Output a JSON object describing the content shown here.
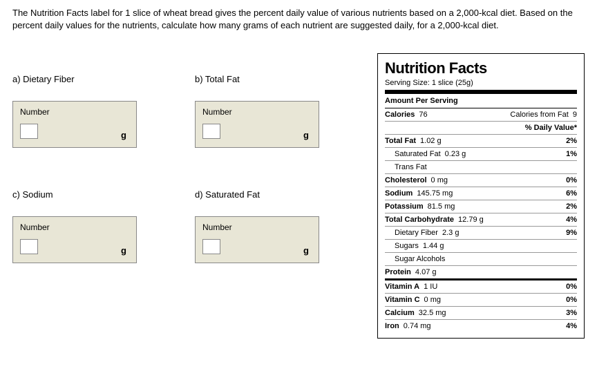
{
  "question": "The Nutrition Facts label for 1 slice of wheat bread gives the percent daily value of various nutrients based on a 2,000-kcal diet. Based on the percent daily values for the nutrients, calculate how many grams of each nutrient are suggested daily, for a 2,000-kcal diet.",
  "parts": {
    "a": {
      "label": "a) Dietary Fiber",
      "box_label": "Number",
      "unit": "g"
    },
    "b": {
      "label": "b) Total Fat",
      "box_label": "Number",
      "unit": "g"
    },
    "c": {
      "label": "c) Sodium",
      "box_label": "Number",
      "unit": "g"
    },
    "d": {
      "label": "d) Saturated Fat",
      "box_label": "Number",
      "unit": "g"
    }
  },
  "nf": {
    "title": "Nutrition Facts",
    "serving": "Serving Size: 1 slice (25g)",
    "amount_per": "Amount Per Serving",
    "calories_name": "Calories",
    "calories_val": "76",
    "calories_fat_label": "Calories from Fat",
    "calories_fat_val": "9",
    "dv_header": "% Daily Value*",
    "rows": [
      {
        "name": "Total Fat",
        "val": "1.02 g",
        "pct": "2%",
        "bold": true,
        "indent": false
      },
      {
        "name": "Saturated Fat",
        "val": "0.23 g",
        "pct": "1%",
        "bold": false,
        "indent": true
      },
      {
        "name": "Trans Fat",
        "val": "",
        "pct": "",
        "bold": false,
        "indent": true
      },
      {
        "name": "Cholesterol",
        "val": "0 mg",
        "pct": "0%",
        "bold": true,
        "indent": false
      },
      {
        "name": "Sodium",
        "val": "145.75 mg",
        "pct": "6%",
        "bold": true,
        "indent": false
      },
      {
        "name": "Potassium",
        "val": "81.5 mg",
        "pct": "2%",
        "bold": true,
        "indent": false
      },
      {
        "name": "Total Carbohydrate",
        "val": "12.79 g",
        "pct": "4%",
        "bold": true,
        "indent": false
      },
      {
        "name": "Dietary Fiber",
        "val": "2.3 g",
        "pct": "9%",
        "bold": false,
        "indent": true
      },
      {
        "name": "Sugars",
        "val": "1.44 g",
        "pct": "",
        "bold": false,
        "indent": true
      },
      {
        "name": "Sugar Alcohols",
        "val": "",
        "pct": "",
        "bold": false,
        "indent": true
      },
      {
        "name": "Protein",
        "val": "4.07 g",
        "pct": "",
        "bold": true,
        "indent": false,
        "thick": true
      },
      {
        "name": "Vitamin A",
        "val": "1 IU",
        "pct": "0%",
        "bold": true,
        "indent": false
      },
      {
        "name": "Vitamin C",
        "val": "0 mg",
        "pct": "0%",
        "bold": true,
        "indent": false
      },
      {
        "name": "Calcium",
        "val": "32.5 mg",
        "pct": "3%",
        "bold": true,
        "indent": false
      },
      {
        "name": "Iron",
        "val": "0.74 mg",
        "pct": "4%",
        "bold": true,
        "indent": false,
        "last": true
      }
    ]
  }
}
